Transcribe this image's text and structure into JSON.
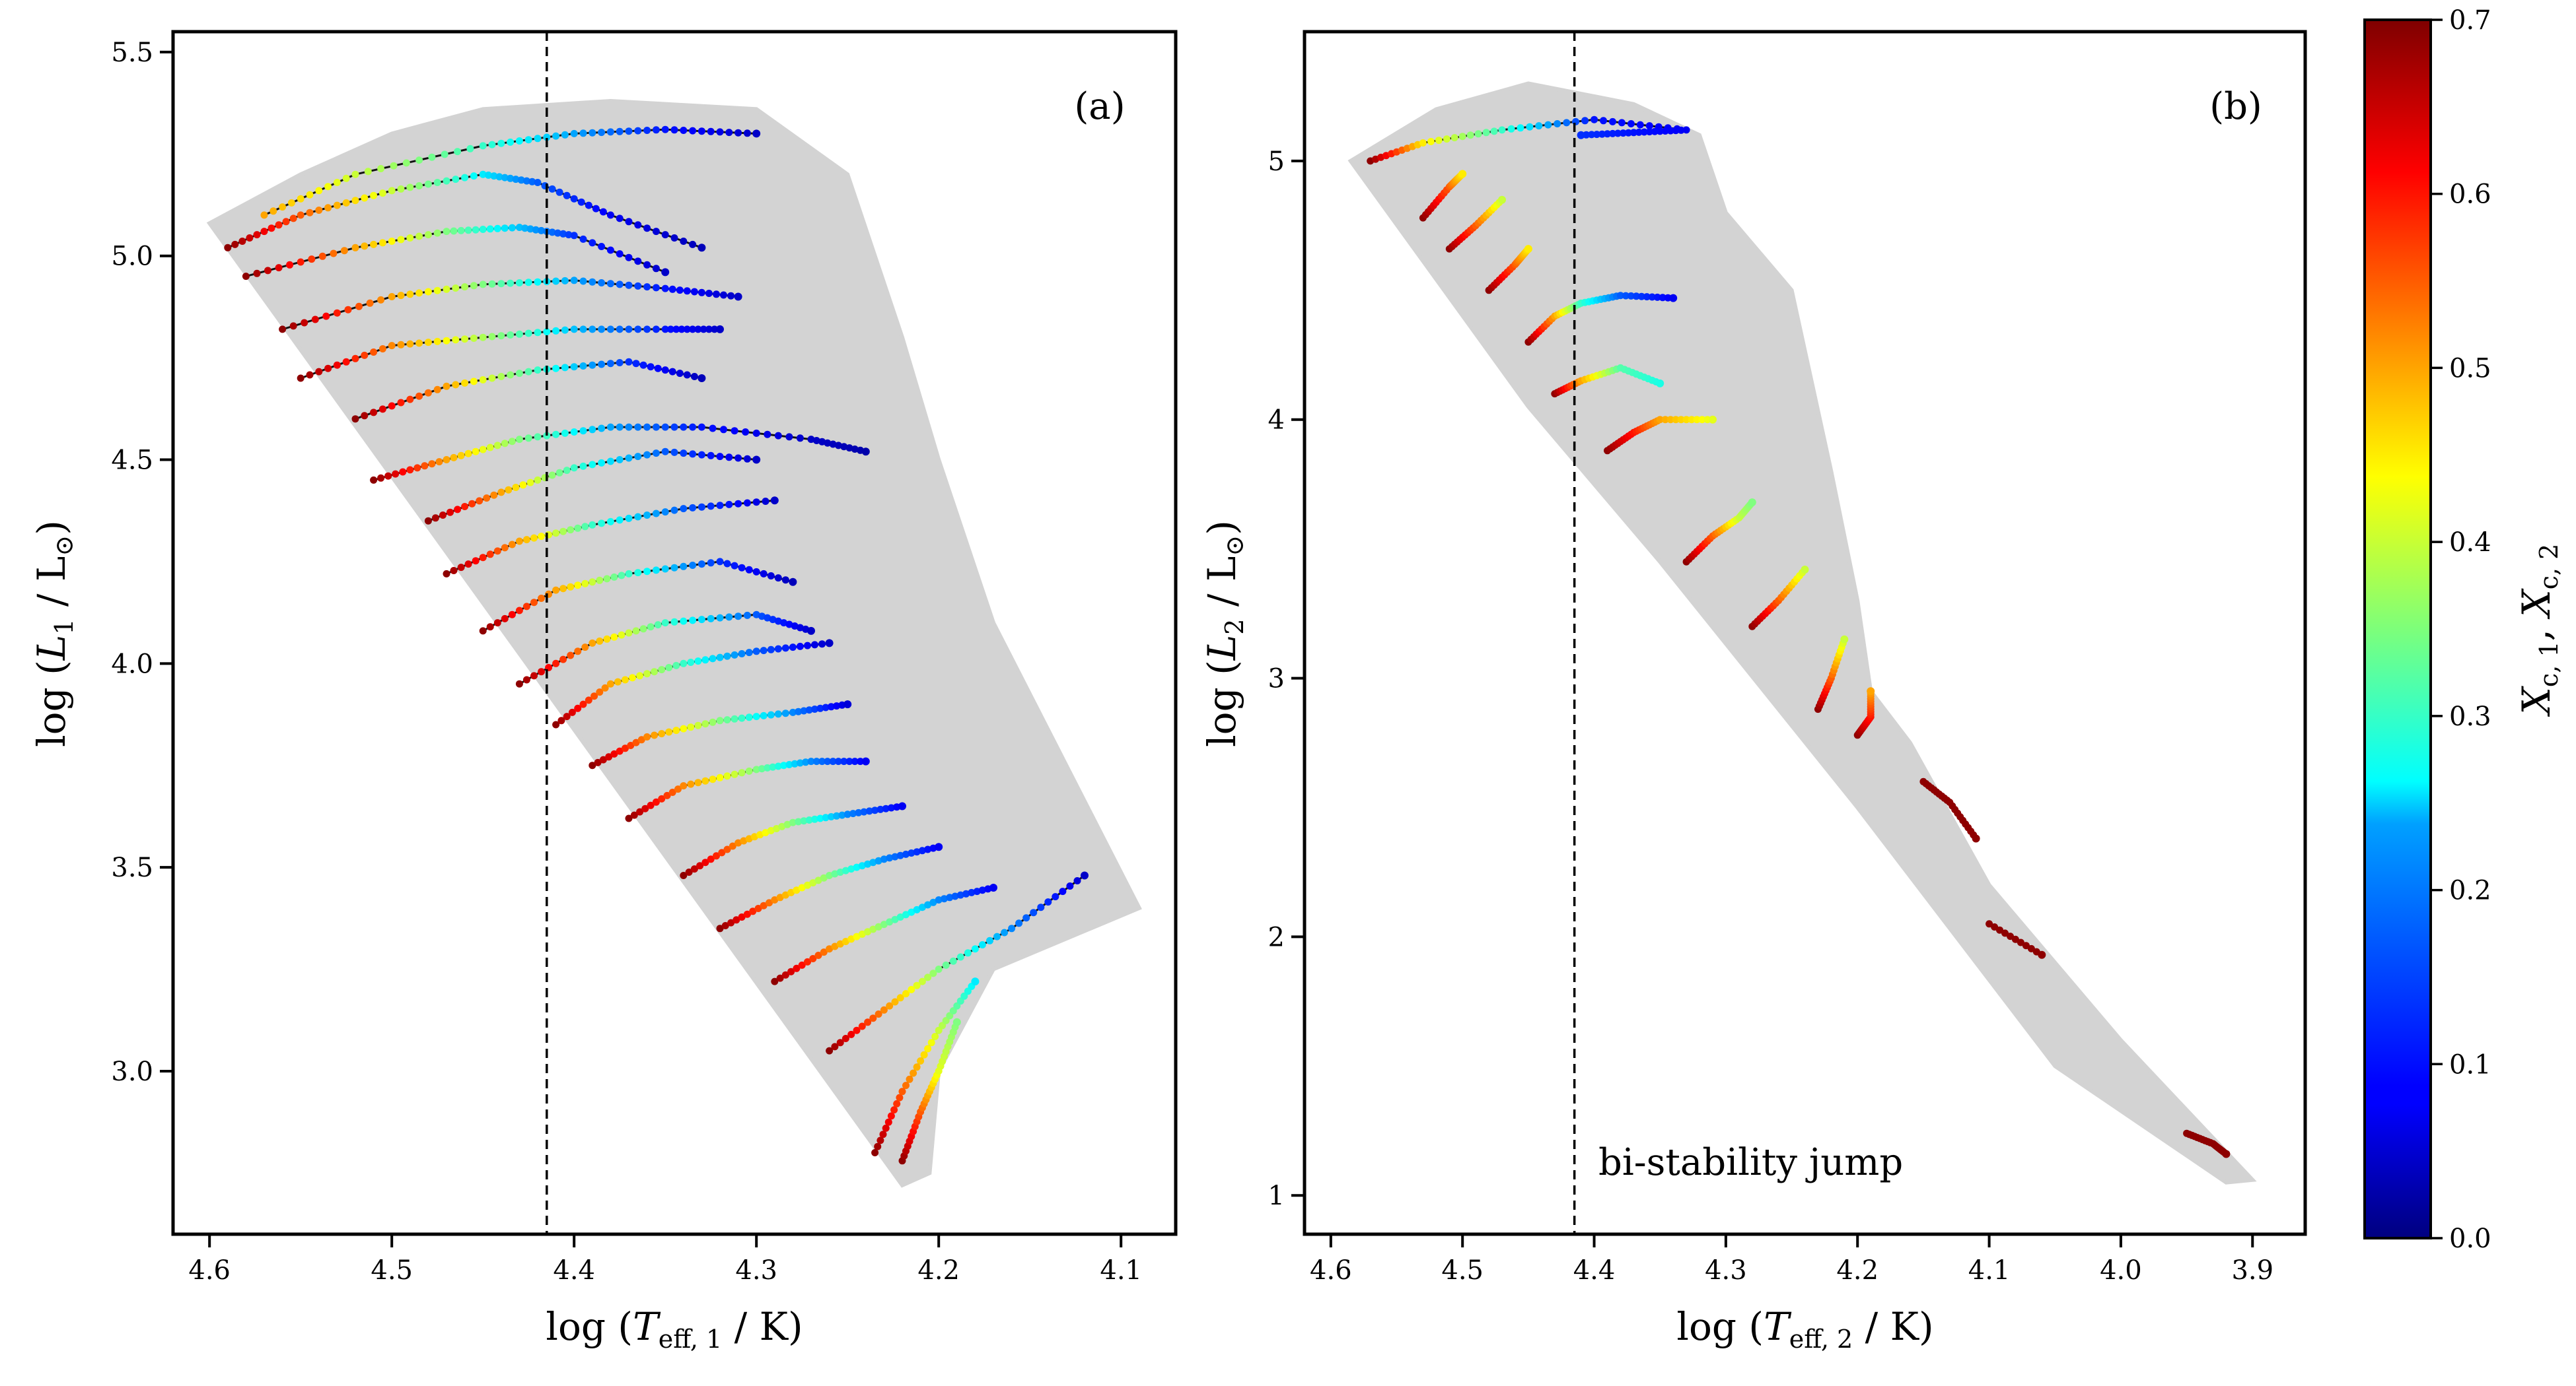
{
  "chart_data": [
    {
      "type": "scatter",
      "panel_label": "(a)",
      "xlabel": "log (T_eff,1 / K)",
      "ylabel": "log (L_1 / L_⊙)",
      "xlim": [
        4.62,
        4.07
      ],
      "ylim": [
        2.6,
        5.55
      ],
      "xticks": [
        4.6,
        4.5,
        4.4,
        4.3,
        4.2,
        4.1
      ],
      "xtick_labels": [
        "4.6",
        "4.5",
        "4.4",
        "4.3",
        "4.2",
        "4.1"
      ],
      "yticks": [
        3.0,
        3.5,
        4.0,
        4.5,
        5.0,
        5.5
      ],
      "ytick_labels": [
        "3.0",
        "3.5",
        "4.0",
        "4.5",
        "5.0",
        "5.5"
      ],
      "vline_x": 4.415,
      "grid_envelope": [
        [
          4.6,
          5.08
        ],
        [
          4.55,
          5.2
        ],
        [
          4.5,
          5.3
        ],
        [
          4.45,
          5.36
        ],
        [
          4.38,
          5.38
        ],
        [
          4.3,
          5.36
        ],
        [
          4.25,
          5.2
        ],
        [
          4.22,
          4.8
        ],
        [
          4.2,
          4.5
        ],
        [
          4.17,
          4.1
        ],
        [
          4.13,
          3.75
        ],
        [
          4.09,
          3.4
        ],
        [
          4.17,
          3.25
        ],
        [
          4.2,
          3.0
        ],
        [
          4.205,
          2.75
        ],
        [
          4.22,
          2.72
        ],
        [
          4.6,
          5.08
        ]
      ],
      "tracks": [
        {
          "x": [
            4.57,
            4.52,
            4.45,
            4.4,
            4.35,
            4.3
          ],
          "y": [
            5.1,
            5.2,
            5.27,
            5.3,
            5.31,
            5.3
          ],
          "xc": [
            0.5,
            0.4,
            0.3,
            0.2,
            0.1,
            0.05
          ]
        },
        {
          "x": [
            4.59,
            4.55,
            4.5,
            4.45,
            4.42,
            4.38,
            4.33
          ],
          "y": [
            5.02,
            5.1,
            5.16,
            5.2,
            5.18,
            5.1,
            5.02
          ],
          "xc": [
            0.69,
            0.55,
            0.4,
            0.25,
            0.15,
            0.08,
            0.04
          ]
        },
        {
          "x": [
            4.58,
            4.52,
            4.47,
            4.43,
            4.4,
            4.35
          ],
          "y": [
            4.95,
            5.02,
            5.06,
            5.07,
            5.05,
            4.96
          ],
          "xc": [
            0.69,
            0.5,
            0.35,
            0.22,
            0.12,
            0.05
          ]
        },
        {
          "x": [
            4.56,
            4.5,
            4.45,
            4.4,
            4.35,
            4.31
          ],
          "y": [
            4.82,
            4.9,
            4.93,
            4.94,
            4.92,
            4.9
          ],
          "xc": [
            0.69,
            0.5,
            0.35,
            0.2,
            0.1,
            0.05
          ]
        },
        {
          "x": [
            4.55,
            4.5,
            4.45,
            4.4,
            4.35,
            4.32
          ],
          "y": [
            4.7,
            4.78,
            4.8,
            4.82,
            4.82,
            4.82
          ],
          "xc": [
            0.69,
            0.52,
            0.38,
            0.22,
            0.1,
            0.05
          ]
        },
        {
          "x": [
            4.52,
            4.47,
            4.42,
            4.37,
            4.33
          ],
          "y": [
            4.6,
            4.68,
            4.72,
            4.74,
            4.7
          ],
          "xc": [
            0.69,
            0.5,
            0.3,
            0.12,
            0.04
          ]
        },
        {
          "x": [
            4.51,
            4.47,
            4.43,
            4.38,
            4.33,
            4.27,
            4.24
          ],
          "y": [
            4.45,
            4.5,
            4.55,
            4.58,
            4.58,
            4.55,
            4.52
          ],
          "xc": [
            0.69,
            0.5,
            0.35,
            0.2,
            0.1,
            0.05,
            0.03
          ]
        },
        {
          "x": [
            4.48,
            4.44,
            4.4,
            4.35,
            4.3
          ],
          "y": [
            4.35,
            4.42,
            4.48,
            4.52,
            4.5
          ],
          "xc": [
            0.69,
            0.5,
            0.3,
            0.15,
            0.05
          ]
        },
        {
          "x": [
            4.47,
            4.43,
            4.39,
            4.34,
            4.29
          ],
          "y": [
            4.22,
            4.3,
            4.34,
            4.38,
            4.4
          ],
          "xc": [
            0.69,
            0.5,
            0.3,
            0.15,
            0.05
          ]
        },
        {
          "x": [
            4.45,
            4.41,
            4.37,
            4.32,
            4.28
          ],
          "y": [
            4.08,
            4.18,
            4.22,
            4.25,
            4.2
          ],
          "xc": [
            0.69,
            0.5,
            0.3,
            0.12,
            0.04
          ]
        },
        {
          "x": [
            4.43,
            4.39,
            4.35,
            4.3,
            4.27
          ],
          "y": [
            3.95,
            4.05,
            4.1,
            4.12,
            4.08
          ],
          "xc": [
            0.69,
            0.5,
            0.3,
            0.15,
            0.05
          ]
        },
        {
          "x": [
            4.41,
            4.38,
            4.34,
            4.3,
            4.26
          ],
          "y": [
            3.85,
            3.95,
            4.0,
            4.03,
            4.05
          ],
          "xc": [
            0.69,
            0.5,
            0.3,
            0.15,
            0.05
          ]
        },
        {
          "x": [
            4.39,
            4.36,
            4.32,
            4.28,
            4.25
          ],
          "y": [
            3.75,
            3.82,
            3.86,
            3.88,
            3.9
          ],
          "xc": [
            0.69,
            0.52,
            0.35,
            0.18,
            0.06
          ]
        },
        {
          "x": [
            4.37,
            4.34,
            4.3,
            4.27,
            4.24
          ],
          "y": [
            3.62,
            3.7,
            3.74,
            3.76,
            3.76
          ],
          "xc": [
            0.69,
            0.52,
            0.35,
            0.18,
            0.08
          ]
        },
        {
          "x": [
            4.34,
            4.31,
            4.28,
            4.25,
            4.22
          ],
          "y": [
            3.48,
            3.56,
            3.61,
            3.63,
            3.65
          ],
          "xc": [
            0.69,
            0.52,
            0.35,
            0.18,
            0.08
          ]
        },
        {
          "x": [
            4.32,
            4.29,
            4.26,
            4.23,
            4.2
          ],
          "y": [
            3.35,
            3.42,
            3.48,
            3.52,
            3.55
          ],
          "xc": [
            0.69,
            0.52,
            0.35,
            0.18,
            0.08
          ]
        },
        {
          "x": [
            4.29,
            4.26,
            4.23,
            4.2,
            4.17
          ],
          "y": [
            3.22,
            3.3,
            3.36,
            3.42,
            3.45
          ],
          "xc": [
            0.69,
            0.52,
            0.35,
            0.18,
            0.08
          ]
        },
        {
          "x": [
            4.26,
            4.23,
            4.2,
            4.16,
            4.12
          ],
          "y": [
            3.05,
            3.15,
            3.25,
            3.35,
            3.48
          ],
          "xc": [
            0.69,
            0.52,
            0.35,
            0.18,
            0.05
          ]
        },
        {
          "x": [
            4.235,
            4.22,
            4.2,
            4.18
          ],
          "y": [
            2.8,
            2.95,
            3.1,
            3.22
          ],
          "xc": [
            0.69,
            0.55,
            0.4,
            0.25
          ]
        },
        {
          "x": [
            4.22,
            4.21,
            4.2,
            4.19
          ],
          "y": [
            2.78,
            2.9,
            3.0,
            3.12
          ],
          "xc": [
            0.69,
            0.55,
            0.42,
            0.35
          ]
        }
      ]
    },
    {
      "type": "scatter",
      "panel_label": "(b)",
      "xlabel": "log (T_eff,2 / K)",
      "ylabel": "log (L_2 / L_⊙)",
      "xlim": [
        4.62,
        3.86
      ],
      "ylim": [
        0.85,
        5.5
      ],
      "xticks": [
        4.6,
        4.5,
        4.4,
        4.3,
        4.2,
        4.1,
        4.0,
        3.9
      ],
      "xtick_labels": [
        "4.6",
        "4.5",
        "4.4",
        "4.3",
        "4.2",
        "4.1",
        "4.0",
        "3.9"
      ],
      "yticks": [
        1,
        2,
        3,
        4,
        5
      ],
      "ytick_labels": [
        "1",
        "2",
        "3",
        "4",
        "5"
      ],
      "vline_x": 4.415,
      "annotation": "bi-stability jump",
      "grid_envelope": [
        [
          4.585,
          5.0
        ],
        [
          4.52,
          5.2
        ],
        [
          4.45,
          5.3
        ],
        [
          4.37,
          5.22
        ],
        [
          4.32,
          5.1
        ],
        [
          4.3,
          4.8
        ],
        [
          4.25,
          4.5
        ],
        [
          4.22,
          3.8
        ],
        [
          4.2,
          3.3
        ],
        [
          4.19,
          2.95
        ],
        [
          4.16,
          2.75
        ],
        [
          4.1,
          2.2
        ],
        [
          4.0,
          1.6
        ],
        [
          3.9,
          1.06
        ],
        [
          3.92,
          1.05
        ],
        [
          4.05,
          1.5
        ],
        [
          4.2,
          2.5
        ],
        [
          4.35,
          3.45
        ],
        [
          4.45,
          4.05
        ],
        [
          4.585,
          5.0
        ]
      ],
      "tracks": [
        {
          "x": [
            4.57,
            4.53,
            4.47,
            4.4,
            4.33,
            4.37,
            4.41
          ],
          "y": [
            5.0,
            5.07,
            5.12,
            5.16,
            5.12,
            5.11,
            5.1
          ],
          "xc": [
            0.69,
            0.45,
            0.3,
            0.1,
            0.08,
            0.1,
            0.12
          ]
        },
        {
          "x": [
            4.53,
            4.51,
            4.5
          ],
          "y": [
            4.78,
            4.9,
            4.95
          ],
          "xc": [
            0.69,
            0.55,
            0.45
          ]
        },
        {
          "x": [
            4.51,
            4.49,
            4.47
          ],
          "y": [
            4.66,
            4.75,
            4.85
          ],
          "xc": [
            0.69,
            0.55,
            0.4
          ]
        },
        {
          "x": [
            4.48,
            4.46,
            4.45
          ],
          "y": [
            4.5,
            4.6,
            4.66
          ],
          "xc": [
            0.69,
            0.55,
            0.45
          ]
        },
        {
          "x": [
            4.45,
            4.43,
            4.41,
            4.38,
            4.34
          ],
          "y": [
            4.3,
            4.4,
            4.45,
            4.48,
            4.47
          ],
          "xc": [
            0.69,
            0.5,
            0.3,
            0.15,
            0.08
          ]
        },
        {
          "x": [
            4.43,
            4.41,
            4.38,
            4.35
          ],
          "y": [
            4.1,
            4.15,
            4.2,
            4.14
          ],
          "xc": [
            0.69,
            0.5,
            0.32,
            0.28
          ]
        },
        {
          "x": [
            4.39,
            4.37,
            4.35,
            4.31
          ],
          "y": [
            3.88,
            3.95,
            4.0,
            4.0
          ],
          "xc": [
            0.69,
            0.6,
            0.5,
            0.42
          ]
        },
        {
          "x": [
            4.33,
            4.31,
            4.29,
            4.28
          ],
          "y": [
            3.45,
            3.55,
            3.62,
            3.68
          ],
          "xc": [
            0.69,
            0.55,
            0.4,
            0.35
          ]
        },
        {
          "x": [
            4.28,
            4.26,
            4.24
          ],
          "y": [
            3.2,
            3.3,
            3.42
          ],
          "xc": [
            0.69,
            0.55,
            0.4
          ]
        },
        {
          "x": [
            4.23,
            4.22,
            4.21
          ],
          "y": [
            2.88,
            3.0,
            3.15
          ],
          "xc": [
            0.69,
            0.55,
            0.4
          ]
        },
        {
          "x": [
            4.2,
            4.19,
            4.19
          ],
          "y": [
            2.78,
            2.85,
            2.95
          ],
          "xc": [
            0.69,
            0.6,
            0.5
          ]
        },
        {
          "x": [
            4.15,
            4.13,
            4.11
          ],
          "y": [
            2.6,
            2.52,
            2.38
          ],
          "xc": [
            0.69,
            0.69,
            0.69
          ]
        },
        {
          "x": [
            4.1,
            4.06
          ],
          "y": [
            2.05,
            1.93
          ],
          "xc": [
            0.69,
            0.69
          ]
        },
        {
          "x": [
            3.95,
            3.93,
            3.92
          ],
          "y": [
            1.24,
            1.2,
            1.16
          ],
          "xc": [
            0.69,
            0.69,
            0.69
          ]
        }
      ]
    }
  ],
  "colorbar": {
    "label": "X_c,1, X_c,2",
    "min": 0.0,
    "max": 0.7,
    "ticks": [
      0.0,
      0.1,
      0.2,
      0.3,
      0.4,
      0.5,
      0.6,
      0.7
    ],
    "tick_labels": [
      "0.0",
      "0.1",
      "0.2",
      "0.3",
      "0.4",
      "0.5",
      "0.6",
      "0.7"
    ]
  },
  "text": {
    "panel_a_label": "(a)",
    "panel_b_label": "(b)",
    "annotation": "bi-stability jump",
    "xlabel_a_prefix": "log (",
    "xlabel_a_T": "T",
    "xlabel_a_sub": "eff, 1",
    "xlabel_a_suffix": " / K)",
    "ylabel_a_prefix": "log (",
    "ylabel_a_L": "L",
    "ylabel_a_sub": "1",
    "ylabel_a_suffix": " / L",
    "ylabel_a_sun": "⊙",
    "ylabel_a_close": ")",
    "xlabel_b_prefix": "log (",
    "xlabel_b_T": "T",
    "xlabel_b_sub": "eff, 2",
    "xlabel_b_suffix": " / K)",
    "ylabel_b_prefix": "log (",
    "ylabel_b_L": "L",
    "ylabel_b_sub": "2",
    "ylabel_b_suffix": " / L",
    "ylabel_b_sun": "⊙",
    "ylabel_b_close": ")",
    "cbar_X1": "X",
    "cbar_sub1": "c, 1",
    "cbar_comma": ", ",
    "cbar_X2": "X",
    "cbar_sub2": "c, 2"
  },
  "colors": {
    "grid_fill": "#d3d3d3",
    "track_line": "#111111",
    "vline": "#000000"
  }
}
